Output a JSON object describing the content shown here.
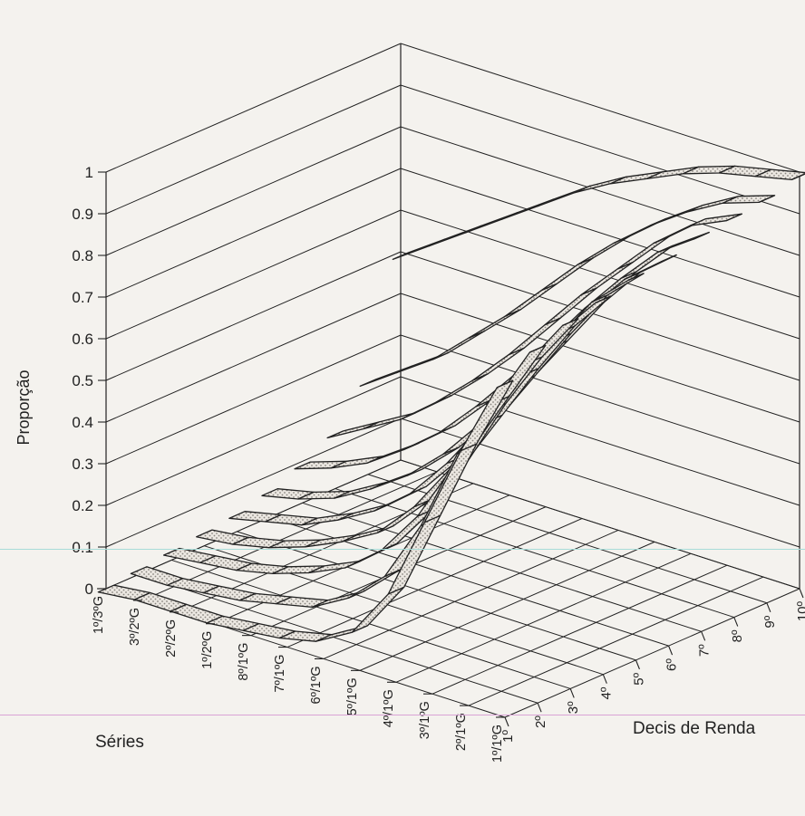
{
  "chart_data": {
    "type": "surface-3d-ribbons",
    "ylabel": "Proporção",
    "xlabel": "Séries",
    "zlabel": "Decis de Renda",
    "ylim": [
      0,
      1
    ],
    "y_ticks": [
      "0",
      "0.1",
      "0.2",
      "0.3",
      "0.4",
      "0.5",
      "0.6",
      "0.7",
      "0.8",
      "0.9",
      "1"
    ],
    "categories": [
      "1º/1ºG",
      "2º/1ºG",
      "3º/1ºG",
      "4º/1ºG",
      "5º/1ºG",
      "6º/1ºG",
      "7º/1ºG",
      "8º/1ºG",
      "1º/2ºG",
      "2º/2ºG",
      "3º/2ºG",
      "1º/3ºG"
    ],
    "series": [
      {
        "name": "1º",
        "values": [
          0.8,
          0.62,
          0.42,
          0.22,
          0.1,
          0.05,
          0.03,
          0.02,
          0.01,
          0.01,
          0.01,
          0.0
        ]
      },
      {
        "name": "2º",
        "values": [
          0.85,
          0.7,
          0.55,
          0.35,
          0.2,
          0.12,
          0.07,
          0.05,
          0.03,
          0.02,
          0.01,
          0.01
        ]
      },
      {
        "name": "3º",
        "values": [
          0.88,
          0.76,
          0.62,
          0.46,
          0.31,
          0.2,
          0.13,
          0.09,
          0.06,
          0.04,
          0.03,
          0.02
        ]
      },
      {
        "name": "4º",
        "values": [
          0.9,
          0.8,
          0.67,
          0.53,
          0.39,
          0.27,
          0.18,
          0.13,
          0.09,
          0.06,
          0.04,
          0.03
        ]
      },
      {
        "name": "5º",
        "values": [
          0.92,
          0.84,
          0.72,
          0.59,
          0.46,
          0.34,
          0.24,
          0.17,
          0.12,
          0.08,
          0.06,
          0.04
        ]
      },
      {
        "name": "6º",
        "values": [
          0.93,
          0.86,
          0.76,
          0.64,
          0.52,
          0.4,
          0.3,
          0.22,
          0.16,
          0.11,
          0.08,
          0.06
        ]
      },
      {
        "name": "7º",
        "values": [
          0.95,
          0.89,
          0.8,
          0.7,
          0.59,
          0.48,
          0.38,
          0.29,
          0.22,
          0.16,
          0.12,
          0.09
        ]
      },
      {
        "name": "8º",
        "values": [
          0.96,
          0.92,
          0.85,
          0.76,
          0.67,
          0.57,
          0.47,
          0.38,
          0.3,
          0.23,
          0.18,
          0.13
        ]
      },
      {
        "name": "9º",
        "values": [
          0.97,
          0.94,
          0.89,
          0.83,
          0.76,
          0.68,
          0.59,
          0.5,
          0.42,
          0.34,
          0.28,
          0.22
        ]
      },
      {
        "name": "10º",
        "values": [
          0.99,
          0.97,
          0.95,
          0.92,
          0.88,
          0.84,
          0.79,
          0.73,
          0.67,
          0.61,
          0.55,
          0.49
        ]
      }
    ],
    "grid": true
  },
  "colors": {
    "background": "#f4f2ee",
    "ink": "#222222",
    "ribbon_fill": "#ebe7e1",
    "ribbon_dots": "#8a8680",
    "pink_line": "#d9a3d6",
    "cyan_line": "#a8dcd8"
  }
}
